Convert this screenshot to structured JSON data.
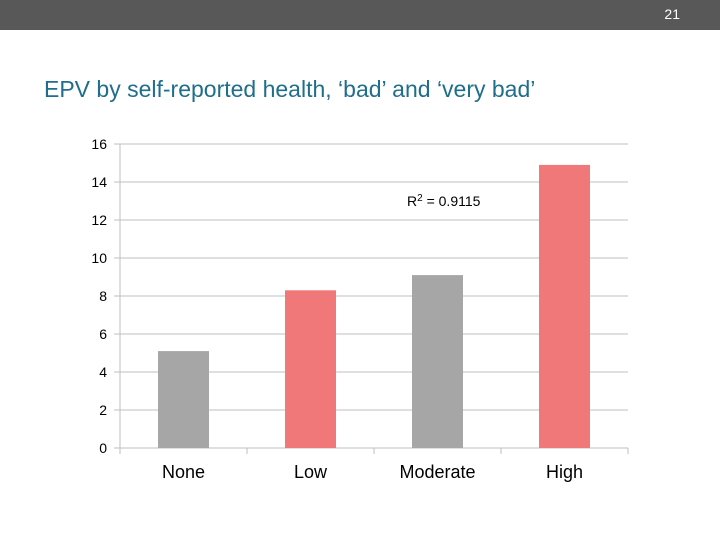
{
  "slide": {
    "number": "21",
    "title": "EPV by self-reported health, ‘bad’ and ‘very bad’"
  },
  "chart_data": {
    "type": "bar",
    "categories": [
      "None",
      "Low",
      "Moderate",
      "High"
    ],
    "values": [
      5.1,
      8.3,
      9.1,
      14.9
    ],
    "colors": [
      "#a6a6a6",
      "#f07878",
      "#a6a6a6",
      "#f07878"
    ],
    "ylim": [
      0,
      16
    ],
    "yticks": [
      0,
      2,
      4,
      6,
      8,
      10,
      12,
      14,
      16
    ],
    "grid": true,
    "title": "",
    "xlabel": "",
    "ylabel": "",
    "annotation": {
      "r": "R",
      "sup": "2",
      "rest": " = 0.9115"
    }
  }
}
